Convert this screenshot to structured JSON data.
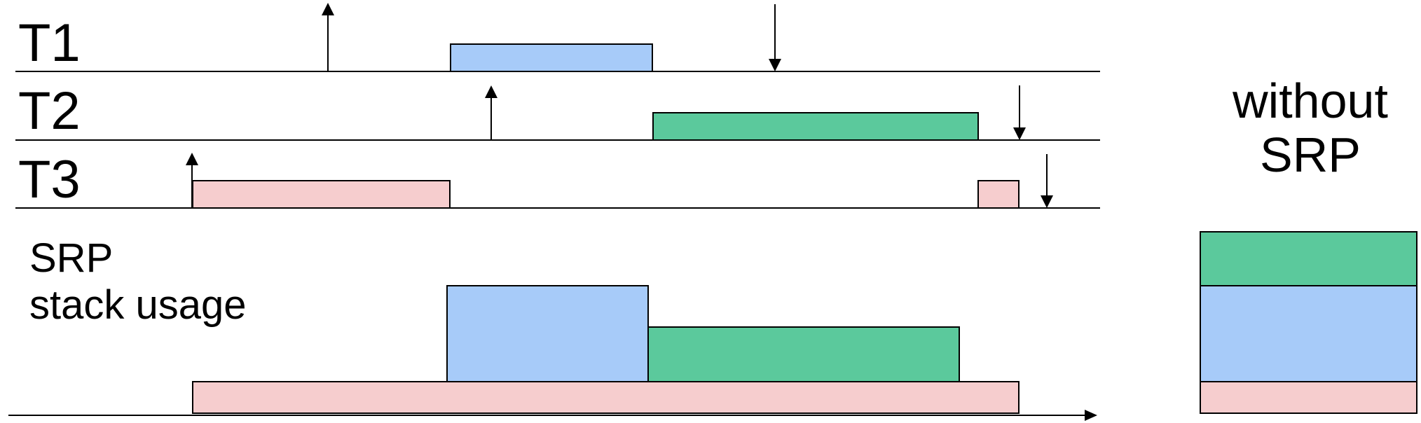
{
  "colors": {
    "T1": "#a7cbf9",
    "T2": "#5bc99c",
    "T3": "#f6cdce",
    "line": "#000000"
  },
  "tasks": [
    {
      "id": "T1",
      "label": "T1"
    },
    {
      "id": "T2",
      "label": "T2"
    },
    {
      "id": "T3",
      "label": "T3"
    }
  ],
  "srp_label": {
    "line1": "SRP",
    "line2": "stack usage"
  },
  "without_label": {
    "line1": "without",
    "line2": "SRP"
  }
}
